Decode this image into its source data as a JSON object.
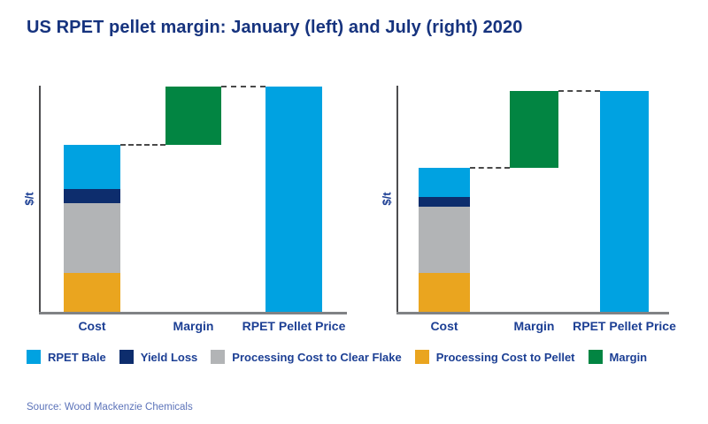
{
  "title": "US RPET pellet margin: January (left) and July (right) 2020",
  "source": {
    "text": "Source: Wood Mackenzie Chemicals"
  },
  "colors": {
    "rpet_bale": "#00A2E1",
    "yield_loss": "#0D2D6D",
    "processing_cost_to_clear_flake": "#B2B4B6",
    "processing_cost_to_pellet": "#EAA51F",
    "margin": "#028542",
    "title_text": "#16337E",
    "label_text": "#1C3F94",
    "source_text": "#5C73B9",
    "y_axis": "#4D4D4F",
    "x_axis": "#808285",
    "dashed_connector": "#4A4A4A"
  },
  "legend": {
    "items": [
      {
        "label": "RPET Bale",
        "color": "#00A2E1"
      },
      {
        "label": "Yield Loss",
        "color": "#0D2D6D"
      },
      {
        "label": "Processing Cost to Clear Flake",
        "color": "#B2B4B6"
      },
      {
        "label": "Processing Cost to Pellet",
        "color": "#EAA51F"
      },
      {
        "label": "Margin",
        "color": "#028542"
      }
    ]
  },
  "chart_data": [
    {
      "type": "waterfall",
      "period": "January 2020",
      "position": "left",
      "ylabel": "$/t",
      "x_categories": [
        "Cost",
        "Margin",
        "RPET Pellet Price"
      ],
      "axis_numeric_ticks": false,
      "units_note": "no numeric axis shown; values estimated as % of January RPET pellet price",
      "cost_stack": [
        {
          "label": "Processing Cost to Pellet",
          "value": 17.3,
          "color": "#EAA51F"
        },
        {
          "label": "Processing Cost to Clear Flake",
          "value": 31.0,
          "color": "#B2B4B6"
        },
        {
          "label": "Yield Loss",
          "value": 6.3,
          "color": "#0D2D6D"
        },
        {
          "label": "RPET Bale",
          "value": 19.6,
          "color": "#00A2E1"
        }
      ],
      "cost_total": 74.2,
      "margin": {
        "value": 25.8,
        "color": "#028542"
      },
      "pellet_price": {
        "value": 100.0,
        "color": "#00A2E1"
      }
    },
    {
      "type": "waterfall",
      "period": "July 2020",
      "position": "right",
      "ylabel": "$/t",
      "x_categories": [
        "Cost",
        "Margin",
        "RPET Pellet Price"
      ],
      "axis_numeric_ticks": false,
      "units_note": "no numeric axis shown; values estimated as % of January RPET pellet price",
      "cost_stack": [
        {
          "label": "Processing Cost to Pellet",
          "value": 17.4,
          "color": "#EAA51F"
        },
        {
          "label": "Processing Cost to Clear Flake",
          "value": 29.4,
          "color": "#B2B4B6"
        },
        {
          "label": "Yield Loss",
          "value": 4.2,
          "color": "#0D2D6D"
        },
        {
          "label": "RPET Bale",
          "value": 12.9,
          "color": "#00A2E1"
        }
      ],
      "cost_total": 63.9,
      "margin": {
        "value": 34.0,
        "color": "#028542"
      },
      "pellet_price": {
        "value": 97.9,
        "color": "#00A2E1"
      }
    }
  ]
}
